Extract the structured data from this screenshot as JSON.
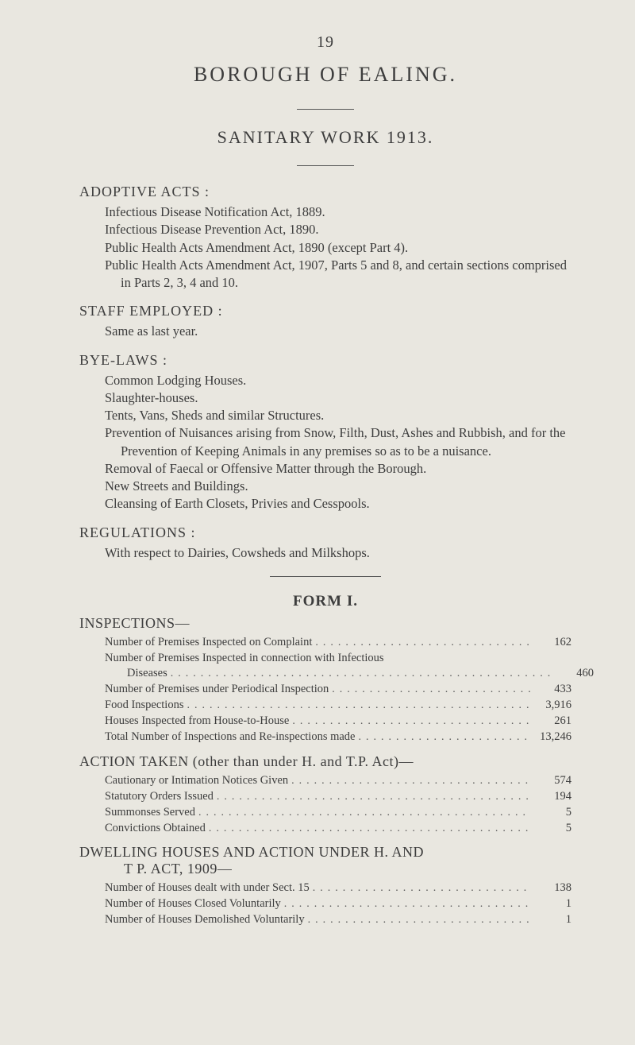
{
  "page_number": "19",
  "main_title": "BOROUGH OF EALING.",
  "sub_title": "SANITARY WORK 1913.",
  "colors": {
    "background": "#e9e7e0",
    "text": "#3d3d3d",
    "rule": "#555555"
  },
  "typography": {
    "body_fontsize_pt": 12,
    "heading_fontsize_pt": 14,
    "title_fontsize_pt": 20,
    "font_family": "Georgia serif"
  },
  "sections": {
    "adoptive": {
      "heading": "ADOPTIVE ACTS :",
      "lines": [
        "Infectious Disease Notification Act, 1889.",
        "Infectious Disease Prevention Act, 1890.",
        "Public Health Acts Amendment Act, 1890 (except Part 4).",
        "Public Health Acts Amendment Act, 1907, Parts 5 and 8, and certain sections comprised in Parts 2, 3, 4 and 10."
      ]
    },
    "staff": {
      "heading": "STAFF EMPLOYED :",
      "lines": [
        "Same as last year."
      ]
    },
    "byelaws": {
      "heading": "BYE-LAWS :",
      "lines": [
        "Common Lodging Houses.",
        "Slaughter-houses.",
        "Tents, Vans, Sheds and similar Structures.",
        "Prevention of Nuisances arising from Snow, Filth, Dust, Ashes and Rubbish, and for the Prevention of Keeping Animals in any premises so as to be a nuisance.",
        "Removal of Faecal or Offensive Matter through the Borough.",
        "New Streets and Buildings.",
        "Cleansing of Earth Closets, Privies and Cesspools."
      ]
    },
    "regulations": {
      "heading": "REGULATIONS :",
      "lines": [
        "With respect to Dairies, Cowsheds and Milkshops."
      ]
    }
  },
  "form_heading": "FORM I.",
  "inspections": {
    "heading": "INSPECTIONS—",
    "rows": [
      {
        "label": "Number of Premises Inspected on Complaint",
        "value": "162"
      },
      {
        "label": "Number of Premises Inspected in connection with Infectious",
        "value": ""
      },
      {
        "label": "Diseases",
        "value": "460",
        "sub": true
      },
      {
        "label": "Number of Premises under Periodical Inspection",
        "value": "433"
      },
      {
        "label": "Food Inspections",
        "value": "3,916"
      },
      {
        "label": "Houses Inspected from House-to-House",
        "value": "261"
      },
      {
        "label": "Total Number of Inspections and Re-inspections made",
        "value": "13,246"
      }
    ]
  },
  "action_taken": {
    "heading": "ACTION TAKEN (other than under H. and T.P. Act)—",
    "rows": [
      {
        "label": "Cautionary or Intimation Notices Given",
        "value": "574"
      },
      {
        "label": "Statutory Orders Issued",
        "value": "194"
      },
      {
        "label": "Summonses Served",
        "value": "5"
      },
      {
        "label": "Convictions Obtained",
        "value": "5"
      }
    ]
  },
  "dwelling": {
    "heading_line1": "DWELLING HOUSES AND ACTION UNDER H. AND",
    "heading_line2": "T P. ACT, 1909—",
    "rows": [
      {
        "label": "Number of Houses dealt with under Sect. 15",
        "value": "138"
      },
      {
        "label": "Number of Houses Closed Voluntarily",
        "value": "1"
      },
      {
        "label": "Number of Houses Demolished Voluntarily",
        "value": "1"
      }
    ]
  }
}
